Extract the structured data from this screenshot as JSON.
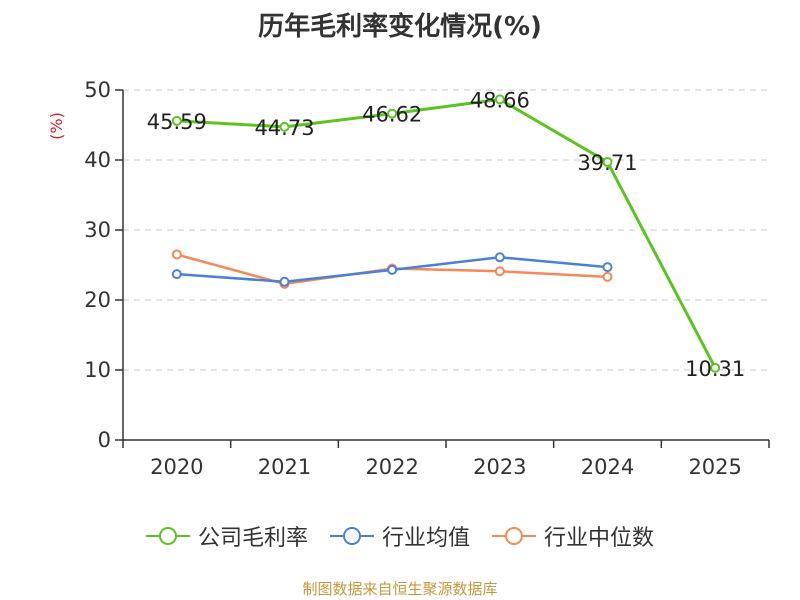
{
  "chart_data": {
    "type": "line",
    "title": "历年毛利率变化情况(%)",
    "ylabel": "(%)",
    "xlabel": "",
    "categories": [
      "2020",
      "2021",
      "2022",
      "2023",
      "2024",
      "2025"
    ],
    "ylim": [
      0,
      50
    ],
    "yticks": [
      0,
      10,
      20,
      30,
      40,
      50
    ],
    "grid": true,
    "legend_position": "bottom",
    "series": [
      {
        "name": "公司毛利率",
        "color": "#5cc41f",
        "values": [
          45.59,
          44.73,
          46.62,
          48.66,
          39.71,
          10.31
        ],
        "labels": [
          "45.59",
          "44.73",
          "46.62",
          "48.66",
          "39.71",
          "10.31"
        ]
      },
      {
        "name": "行业均值",
        "color": "#4a80d8",
        "values": [
          23.7,
          22.6,
          24.3,
          26.1,
          24.7,
          null
        ]
      },
      {
        "name": "行业中位数",
        "color": "#f4895a",
        "values": [
          26.5,
          22.3,
          24.5,
          24.1,
          23.3,
          null
        ]
      }
    ]
  },
  "source": "制图数据来自恒生聚源数据库"
}
